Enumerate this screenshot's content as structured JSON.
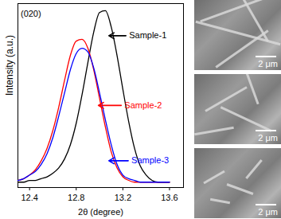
{
  "chart_data": {
    "type": "line",
    "tick_labels": "x",
    "xlabel": "2θ (degree)",
    "ylabel": "Intensity (a.u.)",
    "xlim": [
      12.3,
      13.72
    ],
    "xticks": [
      12.4,
      12.8,
      13.2,
      13.6
    ],
    "ylim": [
      0,
      1.03
    ],
    "x": [
      12.3,
      12.35,
      12.4,
      12.45,
      12.5,
      12.55,
      12.6,
      12.65,
      12.7,
      12.75,
      12.8,
      12.85,
      12.9,
      12.95,
      13.0,
      13.05,
      13.1,
      13.15,
      13.2,
      13.25,
      13.3,
      13.35,
      13.4,
      13.45,
      13.5,
      13.55,
      13.6
    ],
    "series": [
      {
        "name": "Sample-1",
        "color": "#000000",
        "values": [
          0.03,
          0.03,
          0.04,
          0.04,
          0.05,
          0.06,
          0.08,
          0.11,
          0.16,
          0.24,
          0.36,
          0.52,
          0.7,
          0.87,
          0.98,
          0.99,
          0.9,
          0.74,
          0.55,
          0.37,
          0.22,
          0.12,
          0.07,
          0.04,
          0.03,
          0.03,
          0.03
        ]
      },
      {
        "name": "Sample-2",
        "color": "#ff0000",
        "values": [
          0.04,
          0.05,
          0.07,
          0.1,
          0.15,
          0.22,
          0.32,
          0.45,
          0.6,
          0.74,
          0.82,
          0.83,
          0.78,
          0.66,
          0.5,
          0.34,
          0.2,
          0.11,
          0.06,
          0.04,
          0.03,
          0.03,
          0.03,
          0.03,
          0.03,
          0.03,
          0.03
        ]
      },
      {
        "name": "Sample-3",
        "color": "#0000ff",
        "values": [
          0.04,
          0.05,
          0.07,
          0.09,
          0.13,
          0.19,
          0.28,
          0.4,
          0.53,
          0.66,
          0.75,
          0.78,
          0.76,
          0.67,
          0.53,
          0.38,
          0.24,
          0.13,
          0.07,
          0.05,
          0.04,
          0.03,
          0.03,
          0.03,
          0.03,
          0.03,
          0.03
        ]
      }
    ],
    "annotations": [
      {
        "text": "(020)",
        "x": 12.31,
        "y": 0.97,
        "color": "#000000"
      },
      {
        "text": "Sample-1",
        "x": 13.24,
        "y": 0.85,
        "color": "#000000",
        "arrow_to": [
          13.08,
          0.85
        ]
      },
      {
        "text": "Sample-2",
        "x": 13.2,
        "y": 0.46,
        "color": "#ff0000",
        "arrow_to": [
          12.99,
          0.46
        ]
      },
      {
        "text": "Sample-3",
        "x": 13.26,
        "y": 0.15,
        "color": "#0000ff",
        "arrow_to": [
          13.08,
          0.15
        ]
      }
    ]
  },
  "sem_images": {
    "scale_labels": [
      "2 μm",
      "2 μm",
      "2 μm"
    ]
  }
}
